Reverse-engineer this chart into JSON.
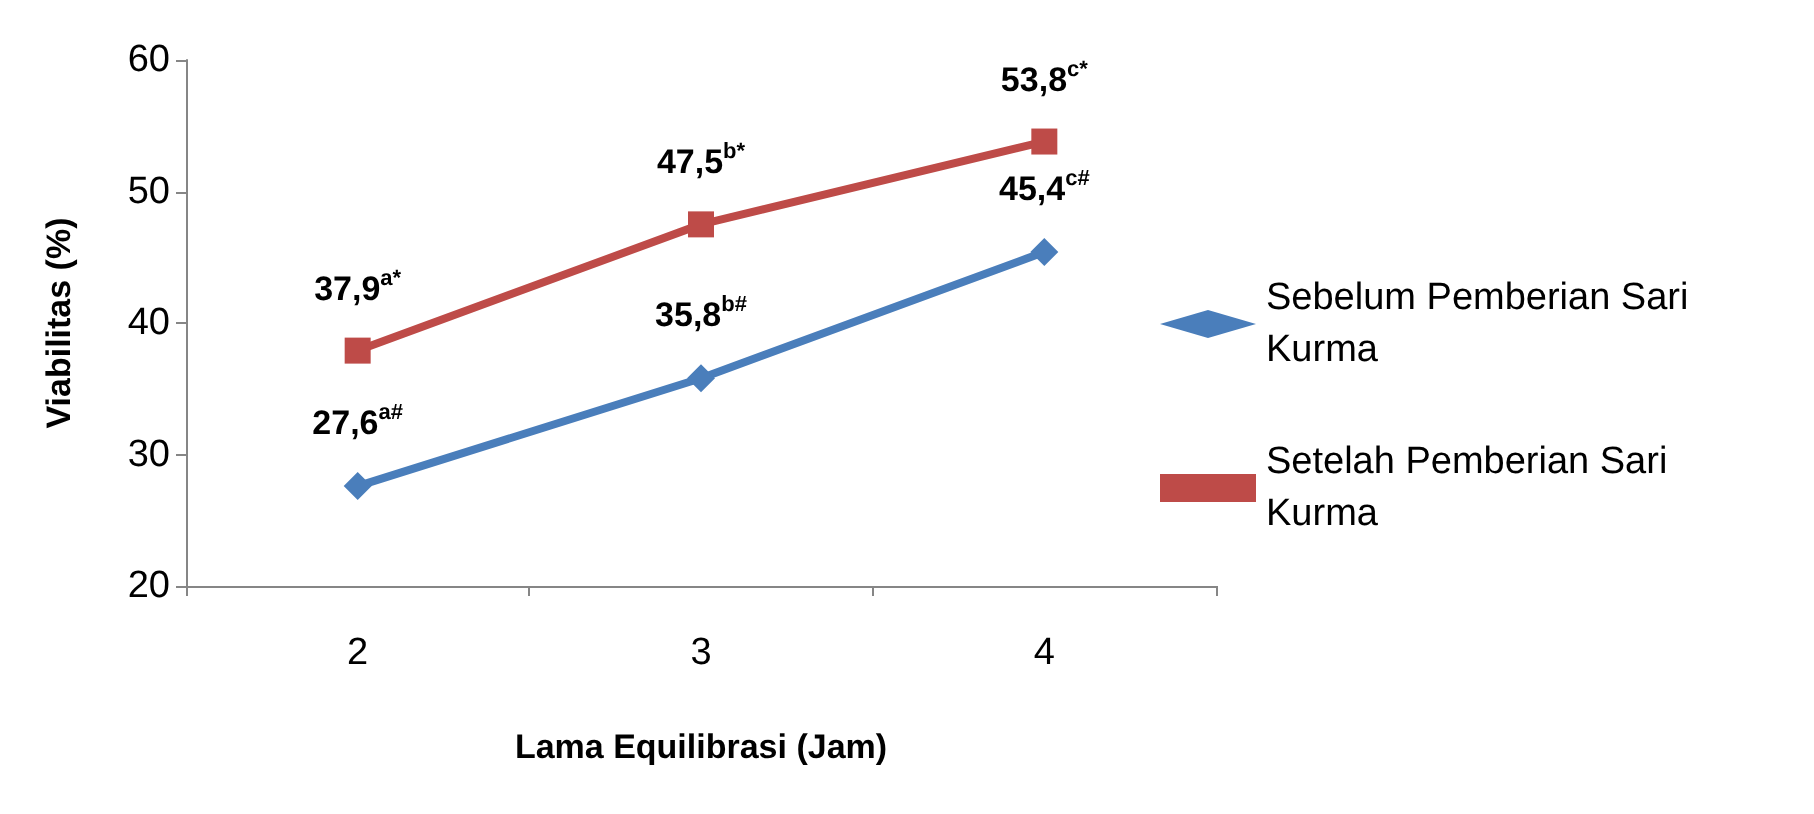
{
  "chart_data": {
    "type": "line",
    "categories": [
      "2",
      "3",
      "4"
    ],
    "xlabel": "Lama Equilibrasi (Jam)",
    "ylabel": "Viabilitas (%)",
    "ylim": [
      20,
      60
    ],
    "yticks": [
      20,
      30,
      40,
      50,
      60
    ],
    "grid": false,
    "legend": "right",
    "line_style": "solid",
    "series": [
      {
        "name": "Sebelum Pemberian Sari Kurma",
        "color": "#4a7ebb",
        "marker": "diamond",
        "values": [
          27.6,
          35.8,
          45.4
        ],
        "value_labels": [
          "27,6$^{a#}$",
          "35,8$^{b#}$",
          "45,4$^{c#}$"
        ]
      },
      {
        "name": "Setelah Pemberian Sari Kurma",
        "color": "#be4b48",
        "marker": "square",
        "values": [
          37.9,
          47.5,
          53.8
        ],
        "value_labels": [
          "37,9$^{a*}$",
          "47,5$^{b*}$",
          "53,8$^{c*}$"
        ]
      }
    ]
  }
}
